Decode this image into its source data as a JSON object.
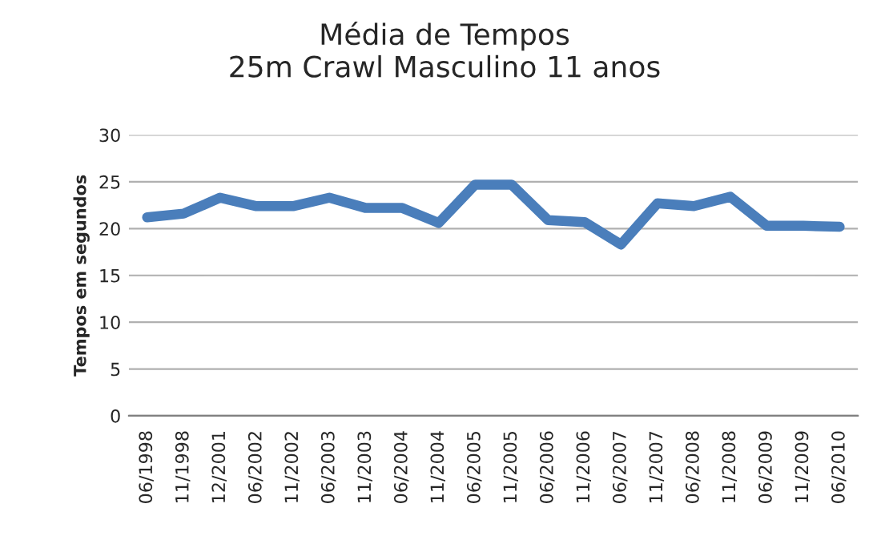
{
  "chart_data": {
    "type": "line",
    "title": "Média de Tempos\n25m Crawl Masculino 11 anos",
    "ylabel": "Tempos em segundos",
    "categories": [
      "06/1998",
      "11/1998",
      "12/2001",
      "06/2002",
      "11/2002",
      "06/2003",
      "11/2003",
      "06/2004",
      "11/2004",
      "06/2005",
      "11/2005",
      "06/2006",
      "11/2006",
      "06/2007",
      "11/2007",
      "06/2008",
      "11/2008",
      "06/2009",
      "11/2009",
      "06/2010"
    ],
    "series": [
      {
        "color": "#4a7ebb",
        "values": [
          21.2,
          21.6,
          23.3,
          22.4,
          22.4,
          23.3,
          22.2,
          22.2,
          20.6,
          24.7,
          24.7,
          20.9,
          20.7,
          18.3,
          22.7,
          22.4,
          23.4,
          20.3,
          20.3,
          20.2
        ]
      }
    ],
    "ylim": [
      0,
      30
    ],
    "yticks": [
      0,
      5,
      10,
      15,
      20,
      25,
      30
    ],
    "grid": "y",
    "marker": "none",
    "line_style": "solid"
  }
}
